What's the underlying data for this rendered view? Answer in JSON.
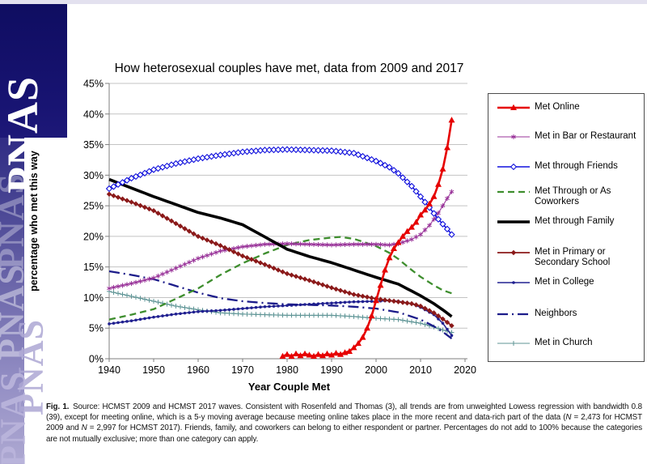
{
  "branding": {
    "wordmark": "PNAS"
  },
  "chart": {
    "title": "How heterosexual couples have met, data from 2009 and 2017",
    "xlabel": "Year Couple Met",
    "ylabel": "percentage who met this way"
  },
  "chart_data": {
    "type": "line",
    "title": "How heterosexual couples have met, data from 2009 and 2017",
    "xlabel": "Year Couple Met",
    "ylabel": "percentage who met this way",
    "x_ticks": [
      1940,
      1950,
      1960,
      1970,
      1980,
      1990,
      2000,
      2010,
      2020
    ],
    "y_ticks_percent": [
      0,
      5,
      10,
      15,
      20,
      25,
      30,
      35,
      40,
      45
    ],
    "xlim": [
      1940,
      2020
    ],
    "ylim": [
      0,
      45
    ],
    "grid": "horizontal",
    "legend_position": "right",
    "draw_order": [
      "church",
      "college",
      "neighbors",
      "coworkers",
      "bar",
      "school",
      "family",
      "friends",
      "online"
    ],
    "series": [
      {
        "id": "online",
        "name": "Met Online",
        "color": "#e60000",
        "width": 2.6,
        "marker": "triangle",
        "points": [
          [
            1979,
            0.4
          ],
          [
            1980,
            0.7
          ],
          [
            1981,
            0.4
          ],
          [
            1982,
            0.8
          ],
          [
            1983,
            0.5
          ],
          [
            1984,
            0.8
          ],
          [
            1985,
            0.6
          ],
          [
            1986,
            0.4
          ],
          [
            1987,
            0.7
          ],
          [
            1988,
            0.5
          ],
          [
            1989,
            0.8
          ],
          [
            1990,
            0.6
          ],
          [
            1991,
            0.9
          ],
          [
            1992,
            0.7
          ],
          [
            1993,
            1.0
          ],
          [
            1994,
            1.2
          ],
          [
            1995,
            1.8
          ],
          [
            1996,
            2.5
          ],
          [
            1997,
            3.5
          ],
          [
            1998,
            5.0
          ],
          [
            1999,
            7.0
          ],
          [
            2000,
            9.5
          ],
          [
            2001,
            12.0
          ],
          [
            2002,
            14.5
          ],
          [
            2003,
            16.5
          ],
          [
            2004,
            18.0
          ],
          [
            2005,
            19.0
          ],
          [
            2006,
            20.0
          ],
          [
            2007,
            20.8
          ],
          [
            2008,
            21.5
          ],
          [
            2009,
            22.3
          ],
          [
            2010,
            23.5
          ],
          [
            2011,
            24.3
          ],
          [
            2012,
            25.3
          ],
          [
            2013,
            26.5
          ],
          [
            2014,
            28.5
          ],
          [
            2015,
            31.0
          ],
          [
            2016,
            34.5
          ],
          [
            2017,
            39.0
          ]
        ]
      },
      {
        "id": "bar",
        "name": "Met in Bar or Restaurant",
        "color": "#993399",
        "width": 1.1,
        "marker": "star",
        "points": [
          [
            1940,
            11.5
          ],
          [
            1945,
            12.3
          ],
          [
            1950,
            13.2
          ],
          [
            1955,
            14.8
          ],
          [
            1960,
            16.4
          ],
          [
            1965,
            17.6
          ],
          [
            1970,
            18.3
          ],
          [
            1975,
            18.7
          ],
          [
            1980,
            18.8
          ],
          [
            1985,
            18.7
          ],
          [
            1990,
            18.6
          ],
          [
            1995,
            18.7
          ],
          [
            2000,
            18.7
          ],
          [
            2003,
            18.6
          ],
          [
            2005,
            18.8
          ],
          [
            2008,
            19.5
          ],
          [
            2010,
            20.3
          ],
          [
            2012,
            21.8
          ],
          [
            2013,
            22.8
          ],
          [
            2014,
            23.8
          ],
          [
            2015,
            25.0
          ],
          [
            2016,
            26.2
          ],
          [
            2017,
            27.3
          ]
        ]
      },
      {
        "id": "friends",
        "name": "Met through Friends",
        "color": "#1010dd",
        "width": 1.6,
        "marker": "diamond-open",
        "points": [
          [
            1940,
            27.8
          ],
          [
            1945,
            29.5
          ],
          [
            1950,
            30.9
          ],
          [
            1955,
            31.9
          ],
          [
            1960,
            32.7
          ],
          [
            1965,
            33.3
          ],
          [
            1970,
            33.8
          ],
          [
            1975,
            34.1
          ],
          [
            1980,
            34.2
          ],
          [
            1985,
            34.1
          ],
          [
            1990,
            34.0
          ],
          [
            1995,
            33.6
          ],
          [
            2000,
            32.3
          ],
          [
            2003,
            31.3
          ],
          [
            2005,
            30.3
          ],
          [
            2008,
            28.2
          ],
          [
            2010,
            26.5
          ],
          [
            2012,
            24.7
          ],
          [
            2014,
            22.8
          ],
          [
            2016,
            21.2
          ],
          [
            2017,
            20.3
          ]
        ]
      },
      {
        "id": "coworkers",
        "name": "Met Through or As Coworkers",
        "color": "#3e8e2e",
        "width": 2.3,
        "dash": "8 5",
        "points": [
          [
            1940,
            6.4
          ],
          [
            1945,
            7.2
          ],
          [
            1950,
            8.1
          ],
          [
            1955,
            9.8
          ],
          [
            1960,
            11.5
          ],
          [
            1965,
            13.7
          ],
          [
            1970,
            15.6
          ],
          [
            1975,
            17.2
          ],
          [
            1980,
            18.6
          ],
          [
            1985,
            19.4
          ],
          [
            1990,
            19.8
          ],
          [
            1992,
            19.9
          ],
          [
            1995,
            19.6
          ],
          [
            2000,
            18.4
          ],
          [
            2003,
            17.3
          ],
          [
            2005,
            16.3
          ],
          [
            2008,
            14.5
          ],
          [
            2010,
            13.4
          ],
          [
            2013,
            12.0
          ],
          [
            2015,
            11.2
          ],
          [
            2017,
            10.7
          ]
        ]
      },
      {
        "id": "family",
        "name": "Met through Family",
        "color": "#000000",
        "width": 3.6,
        "points": [
          [
            1940,
            29.3
          ],
          [
            1945,
            27.9
          ],
          [
            1950,
            26.5
          ],
          [
            1955,
            25.2
          ],
          [
            1960,
            23.9
          ],
          [
            1965,
            23.0
          ],
          [
            1970,
            21.9
          ],
          [
            1975,
            19.9
          ],
          [
            1980,
            17.9
          ],
          [
            1985,
            16.7
          ],
          [
            1990,
            15.7
          ],
          [
            1995,
            14.5
          ],
          [
            2000,
            13.3
          ],
          [
            2005,
            12.2
          ],
          [
            2010,
            10.3
          ],
          [
            2013,
            9.0
          ],
          [
            2015,
            8.0
          ],
          [
            2017,
            6.9
          ]
        ]
      },
      {
        "id": "school",
        "name": "Met in Primary or Secondary School",
        "color": "#8b1a1a",
        "width": 1.8,
        "marker": "diamond",
        "points": [
          [
            1940,
            26.9
          ],
          [
            1945,
            25.6
          ],
          [
            1950,
            24.2
          ],
          [
            1955,
            22.1
          ],
          [
            1960,
            20.0
          ],
          [
            1965,
            18.5
          ],
          [
            1970,
            16.8
          ],
          [
            1975,
            15.4
          ],
          [
            1980,
            13.9
          ],
          [
            1985,
            12.8
          ],
          [
            1990,
            11.6
          ],
          [
            1995,
            10.5
          ],
          [
            2000,
            9.8
          ],
          [
            2005,
            9.3
          ],
          [
            2008,
            9.0
          ],
          [
            2010,
            8.6
          ],
          [
            2013,
            7.5
          ],
          [
            2015,
            6.5
          ],
          [
            2017,
            5.4
          ]
        ]
      },
      {
        "id": "college",
        "name": "Met in College",
        "color": "#202090",
        "width": 1.5,
        "marker": "dot",
        "points": [
          [
            1940,
            5.7
          ],
          [
            1945,
            6.2
          ],
          [
            1950,
            6.8
          ],
          [
            1955,
            7.3
          ],
          [
            1960,
            7.7
          ],
          [
            1965,
            7.9
          ],
          [
            1970,
            8.2
          ],
          [
            1975,
            8.5
          ],
          [
            1980,
            8.7
          ],
          [
            1985,
            8.9
          ],
          [
            1990,
            9.1
          ],
          [
            1995,
            9.3
          ],
          [
            2000,
            9.4
          ],
          [
            2003,
            9.5
          ],
          [
            2005,
            9.4
          ],
          [
            2008,
            9.0
          ],
          [
            2010,
            8.4
          ],
          [
            2013,
            7.2
          ],
          [
            2015,
            5.8
          ],
          [
            2017,
            3.8
          ]
        ]
      },
      {
        "id": "neighbors",
        "name": "Neighbors",
        "color": "#1c1c8a",
        "width": 2.3,
        "dash": "13 5 2 5",
        "points": [
          [
            1940,
            14.3
          ],
          [
            1945,
            13.7
          ],
          [
            1950,
            13.0
          ],
          [
            1955,
            11.9
          ],
          [
            1960,
            10.8
          ],
          [
            1965,
            9.9
          ],
          [
            1970,
            9.4
          ],
          [
            1975,
            9.1
          ],
          [
            1980,
            8.9
          ],
          [
            1985,
            8.8
          ],
          [
            1990,
            8.7
          ],
          [
            1995,
            8.5
          ],
          [
            2000,
            8.2
          ],
          [
            2005,
            7.6
          ],
          [
            2010,
            6.4
          ],
          [
            2013,
            5.3
          ],
          [
            2015,
            4.4
          ],
          [
            2017,
            3.3
          ]
        ]
      },
      {
        "id": "church",
        "name": "Met in Church",
        "color": "#5f9596",
        "width": 1.1,
        "marker": "plus",
        "points": [
          [
            1940,
            11.0
          ],
          [
            1945,
            10.2
          ],
          [
            1950,
            9.4
          ],
          [
            1955,
            8.6
          ],
          [
            1960,
            8.0
          ],
          [
            1965,
            7.5
          ],
          [
            1970,
            7.3
          ],
          [
            1975,
            7.2
          ],
          [
            1980,
            7.1
          ],
          [
            1985,
            7.1
          ],
          [
            1990,
            7.1
          ],
          [
            1995,
            6.9
          ],
          [
            2000,
            6.6
          ],
          [
            2005,
            6.4
          ],
          [
            2010,
            5.8
          ],
          [
            2013,
            5.2
          ],
          [
            2015,
            4.7
          ],
          [
            2017,
            4.3
          ]
        ]
      }
    ]
  },
  "caption": {
    "segments": [
      {
        "t": "Fig. 1.",
        "b": true
      },
      {
        "t": " Source: HCMST 2009 and HCMST 2017 waves. Consistent with Rosenfeld and Thomas (3), all trends are from unweighted Lowess regression with bandwidth 0.8 (39), except for meeting online, which is a 5-y moving average because meeting online takes place in the more recent and data-rich part of the data ("
      },
      {
        "t": "N",
        "i": true
      },
      {
        "t": " = 2,473 for HCMST 2009 and "
      },
      {
        "t": "N",
        "i": true
      },
      {
        "t": " = 2,997 for HCMST 2017). Friends, family, and coworkers can belong to either respondent or partner. Percentages do not add to 100% because the categories are not mutually exclusive; more than one category can apply."
      }
    ]
  }
}
